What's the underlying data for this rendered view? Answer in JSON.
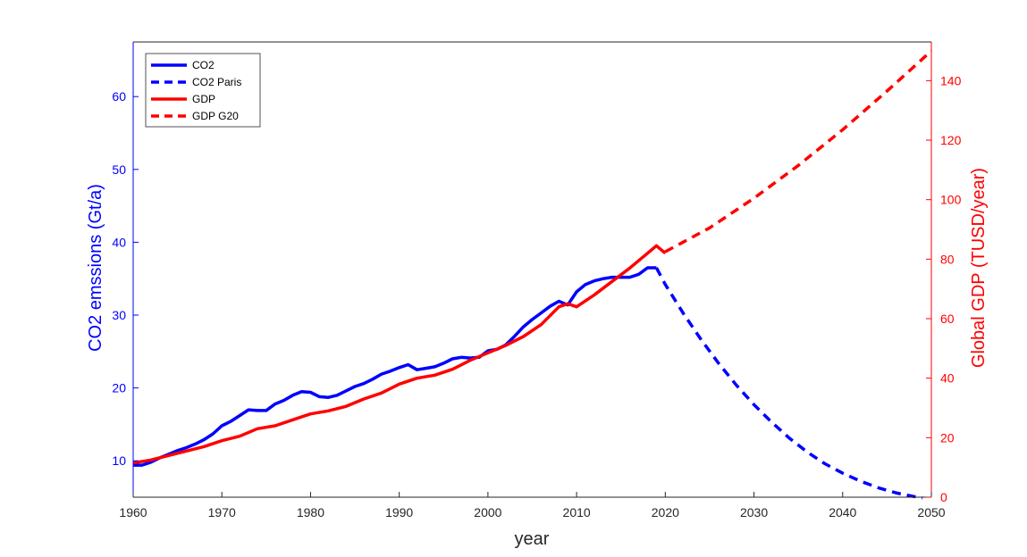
{
  "chart_data": {
    "type": "line",
    "xlabel": "year",
    "ylabel_left": "CO2 emssions (Gt/a)",
    "ylabel_right": "Global GDP (TUSD/year)",
    "xlim": [
      1960,
      2050
    ],
    "ylim_left": [
      5,
      67.5
    ],
    "ylim_right": [
      0,
      153
    ],
    "x_ticks": [
      "1960",
      "1970",
      "1980",
      "1990",
      "2000",
      "2010",
      "2020",
      "2030",
      "2040",
      "2050"
    ],
    "y_left_ticks": [
      "10",
      "20",
      "30",
      "40",
      "50",
      "60"
    ],
    "y_right_ticks": [
      "0",
      "20",
      "40",
      "60",
      "80",
      "100",
      "120",
      "140"
    ],
    "grid": false,
    "legend_position": "top-left",
    "colors": {
      "co2": "#0000ff",
      "gdp": "#ff0000"
    },
    "series": [
      {
        "name": "CO2",
        "axis": "left",
        "style": "solid",
        "x": [
          1960,
          1961,
          1962,
          1963,
          1964,
          1965,
          1966,
          1967,
          1968,
          1969,
          1970,
          1971,
          1972,
          1973,
          1974,
          1975,
          1976,
          1977,
          1978,
          1979,
          1980,
          1981,
          1982,
          1983,
          1984,
          1985,
          1986,
          1987,
          1988,
          1989,
          1990,
          1991,
          1992,
          1993,
          1994,
          1995,
          1996,
          1997,
          1998,
          1999,
          2000,
          2001,
          2002,
          2003,
          2004,
          2005,
          2006,
          2007,
          2008,
          2009,
          2010,
          2011,
          2012,
          2013,
          2014,
          2015,
          2016,
          2017,
          2018,
          2019
        ],
        "y": [
          9.4,
          9.4,
          9.8,
          10.4,
          10.9,
          11.4,
          11.8,
          12.3,
          12.9,
          13.7,
          14.8,
          15.4,
          16.2,
          17.0,
          16.9,
          16.9,
          17.8,
          18.3,
          19.0,
          19.5,
          19.4,
          18.8,
          18.7,
          19.0,
          19.6,
          20.2,
          20.6,
          21.2,
          21.9,
          22.3,
          22.8,
          23.2,
          22.5,
          22.7,
          22.9,
          23.4,
          24.0,
          24.2,
          24.1,
          24.2,
          25.1,
          25.3,
          25.9,
          27.1,
          28.4,
          29.4,
          30.3,
          31.2,
          31.9,
          31.4,
          33.2,
          34.2,
          34.7,
          35.0,
          35.2,
          35.2,
          35.2,
          35.6,
          36.5,
          36.5
        ]
      },
      {
        "name": "CO2 Paris",
        "axis": "left",
        "style": "dashed",
        "x": [
          2019,
          2020,
          2022,
          2024,
          2026,
          2028,
          2030,
          2032,
          2034,
          2036,
          2038,
          2040,
          2042,
          2044,
          2046,
          2048,
          2049
        ],
        "y": [
          36.5,
          34.2,
          30.3,
          26.7,
          23.4,
          20.4,
          17.7,
          15.3,
          13.1,
          11.2,
          9.6,
          8.3,
          7.2,
          6.3,
          5.6,
          5.1,
          4.9
        ]
      },
      {
        "name": "GDP",
        "axis": "right",
        "style": "solid",
        "x": [
          1960,
          1962,
          1964,
          1966,
          1968,
          1970,
          1972,
          1974,
          1976,
          1978,
          1980,
          1982,
          1984,
          1986,
          1988,
          1990,
          1992,
          1994,
          1996,
          1998,
          2000,
          2002,
          2004,
          2006,
          2008,
          2009,
          2010,
          2012,
          2014,
          2016,
          2018,
          2019,
          2020
        ],
        "y": [
          11.5,
          12.5,
          14.0,
          15.5,
          17.0,
          19.0,
          20.5,
          23.0,
          24.0,
          26.0,
          28.0,
          29.0,
          30.5,
          33.0,
          35.0,
          38.0,
          40.0,
          41.0,
          43.0,
          46.0,
          48.5,
          51.0,
          54.0,
          58.0,
          64.0,
          65.0,
          64.0,
          68.0,
          72.5,
          77.0,
          82.0,
          84.5,
          82.0
        ]
      },
      {
        "name": "GDP G20",
        "axis": "right",
        "style": "dashed",
        "x": [
          2020,
          2025,
          2030,
          2035,
          2040,
          2045,
          2050
        ],
        "y": [
          82.5,
          90.5,
          100.5,
          111.5,
          123.5,
          136.5,
          150.0
        ]
      }
    ]
  }
}
